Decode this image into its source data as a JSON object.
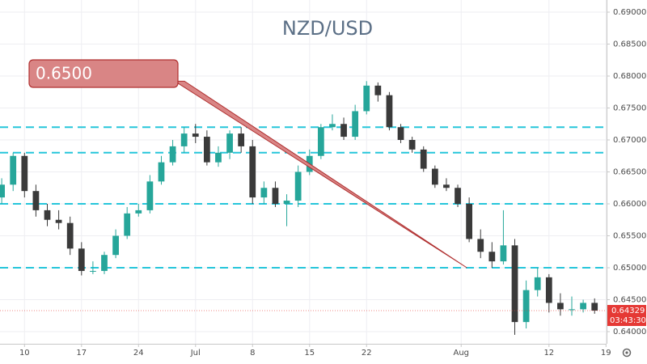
{
  "chart_data": {
    "type": "candlestick",
    "title": "NZD/USD",
    "x": [
      0,
      1,
      2,
      3,
      4,
      5,
      6,
      7,
      8,
      9,
      10,
      11,
      12,
      13,
      14,
      15,
      16,
      17,
      18,
      19,
      20,
      21,
      22,
      23,
      24,
      25,
      26,
      27,
      28,
      29,
      30,
      31,
      32,
      33,
      34,
      35,
      36,
      37,
      38,
      39,
      40,
      41,
      42,
      43,
      44,
      45,
      46,
      47,
      48,
      49,
      50,
      51,
      52
    ],
    "open": [
      0.661,
      0.663,
      0.6675,
      0.662,
      0.659,
      0.6575,
      0.657,
      0.653,
      0.6495,
      0.6495,
      0.652,
      0.655,
      0.6585,
      0.659,
      0.6635,
      0.6665,
      0.669,
      0.671,
      0.6705,
      0.6665,
      0.668,
      0.671,
      0.669,
      0.661,
      0.6625,
      0.66,
      0.6605,
      0.665,
      0.6675,
      0.672,
      0.6725,
      0.6705,
      0.6745,
      0.6785,
      0.677,
      0.672,
      0.67,
      0.6685,
      0.6655,
      0.663,
      0.6625,
      0.66,
      0.6545,
      0.6525,
      0.651,
      0.6535,
      0.6415,
      0.6465,
      0.6485,
      0.6445,
      0.6435,
      0.6435,
      0.6445
    ],
    "high": [
      0.664,
      0.668,
      0.668,
      0.663,
      0.66,
      0.659,
      0.658,
      0.654,
      0.651,
      0.6525,
      0.656,
      0.6595,
      0.66,
      0.6645,
      0.6675,
      0.67,
      0.672,
      0.6725,
      0.6715,
      0.669,
      0.6715,
      0.672,
      0.67,
      0.6635,
      0.6635,
      0.6615,
      0.666,
      0.6685,
      0.6725,
      0.674,
      0.6735,
      0.6755,
      0.6792,
      0.679,
      0.6775,
      0.6725,
      0.6705,
      0.669,
      0.666,
      0.664,
      0.663,
      0.661,
      0.656,
      0.654,
      0.659,
      0.6545,
      0.648,
      0.65,
      0.649,
      0.646,
      0.6455,
      0.645,
      0.6452
    ],
    "low": [
      0.66,
      0.662,
      0.661,
      0.658,
      0.6565,
      0.656,
      0.652,
      0.6488,
      0.649,
      0.649,
      0.6515,
      0.6545,
      0.658,
      0.6585,
      0.663,
      0.666,
      0.668,
      0.6695,
      0.666,
      0.6658,
      0.667,
      0.668,
      0.66,
      0.66,
      0.6595,
      0.6565,
      0.6595,
      0.6645,
      0.667,
      0.6715,
      0.67,
      0.67,
      0.674,
      0.676,
      0.6715,
      0.6695,
      0.668,
      0.665,
      0.6625,
      0.662,
      0.6595,
      0.654,
      0.6515,
      0.65,
      0.6505,
      0.6395,
      0.6405,
      0.6455,
      0.643,
      0.6425,
      0.6425,
      0.643,
      0.6428
    ],
    "close": [
      0.663,
      0.6675,
      0.662,
      0.659,
      0.6575,
      0.657,
      0.653,
      0.6495,
      0.6495,
      0.652,
      0.655,
      0.6585,
      0.659,
      0.6635,
      0.6665,
      0.669,
      0.671,
      0.6705,
      0.6665,
      0.668,
      0.671,
      0.669,
      0.661,
      0.6625,
      0.66,
      0.6605,
      0.665,
      0.6675,
      0.672,
      0.6725,
      0.6705,
      0.6745,
      0.6785,
      0.677,
      0.672,
      0.67,
      0.6685,
      0.6655,
      0.663,
      0.6625,
      0.66,
      0.6545,
      0.6525,
      0.651,
      0.6535,
      0.6415,
      0.6465,
      0.6485,
      0.6445,
      0.6435,
      0.6435,
      0.6445,
      0.64329
    ],
    "up_color": "#26a69a",
    "down_color": "#3a3a3a",
    "xlim": [
      -0.15,
      53.05
    ],
    "xticks": [
      {
        "value": 2,
        "label": "10"
      },
      {
        "value": 7,
        "label": "17"
      },
      {
        "value": 12,
        "label": "24"
      },
      {
        "value": 17,
        "label": "Jul"
      },
      {
        "value": 22,
        "label": "8"
      },
      {
        "value": 27,
        "label": "15"
      },
      {
        "value": 32,
        "label": "22"
      },
      {
        "value": 40.3,
        "label": "Aug"
      },
      {
        "value": 48,
        "label": "12"
      },
      {
        "value": 53,
        "label": "19"
      }
    ],
    "ylim": [
      0.6381,
      0.6919
    ],
    "yticks": [
      {
        "value": 0.64,
        "label": "0.64000"
      },
      {
        "value": 0.645,
        "label": "0.64500"
      },
      {
        "value": 0.65,
        "label": "0.65000"
      },
      {
        "value": 0.655,
        "label": "0.65500"
      },
      {
        "value": 0.66,
        "label": "0.66000"
      },
      {
        "value": 0.665,
        "label": "0.66500"
      },
      {
        "value": 0.67,
        "label": "0.67000"
      },
      {
        "value": 0.675,
        "label": "0.67500"
      },
      {
        "value": 0.68,
        "label": "0.68000"
      },
      {
        "value": 0.685,
        "label": "0.68500"
      },
      {
        "value": 0.69,
        "label": "0.69000"
      }
    ],
    "grid": true,
    "hlines": [
      0.672,
      0.668,
      0.66,
      0.65
    ],
    "hline_color": "#26c6da",
    "annotation": {
      "text": "0.6500",
      "x": [
        15.6,
        40.8
      ],
      "y": [
        0.6792,
        0.65
      ],
      "color": "#d98585"
    },
    "last_price": 0.64329,
    "countdown": "03:43:30",
    "last_price_color": "#e53935"
  }
}
